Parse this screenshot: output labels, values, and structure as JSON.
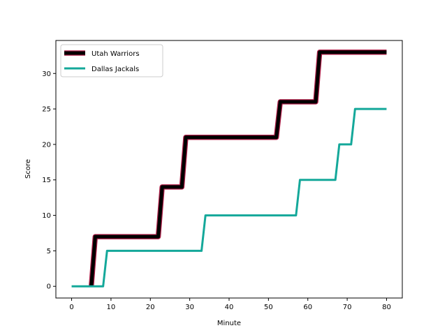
{
  "chart_data": {
    "type": "line",
    "title": "",
    "xlabel": "Minute",
    "ylabel": "Score",
    "xlim": [
      -4,
      84
    ],
    "ylim": [
      -1.65,
      34.65
    ],
    "xticks": [
      0,
      10,
      20,
      30,
      40,
      50,
      60,
      70,
      80
    ],
    "yticks": [
      0,
      5,
      10,
      15,
      20,
      25,
      30
    ],
    "grid": false,
    "legend": "top-left",
    "series": [
      {
        "name": "Utah Warriors",
        "color": "#000000",
        "edge_color": "#b0204a",
        "x": [
          5,
          6,
          22,
          23,
          28,
          29,
          52,
          53,
          62,
          63,
          80
        ],
        "y": [
          0,
          7,
          7,
          14,
          14,
          21,
          21,
          26,
          26,
          33,
          33
        ]
      },
      {
        "name": "Dallas Jackals",
        "color": "#14a89a",
        "x": [
          0,
          8,
          9,
          33,
          34,
          57,
          58,
          67,
          68,
          71,
          72,
          80
        ],
        "y": [
          0,
          0,
          5,
          5,
          10,
          10,
          15,
          15,
          20,
          20,
          25,
          25
        ]
      }
    ]
  }
}
